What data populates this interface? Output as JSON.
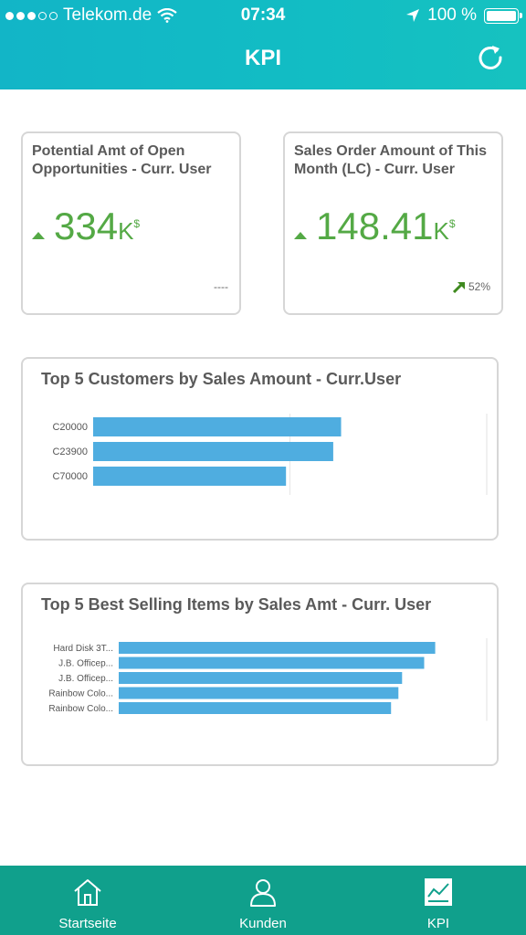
{
  "status_bar": {
    "carrier": "Telekom.de",
    "time": "07:34",
    "battery": "100 %"
  },
  "nav": {
    "title": "KPI"
  },
  "kpi_tiles": [
    {
      "title": "Potential Amt of Open Opportunities - Curr. User",
      "value": "334",
      "unit": "K",
      "currency": "$",
      "footer": "----"
    },
    {
      "title": "Sales Order Amount of This Month (LC) - Curr. User",
      "value": "148.41",
      "unit": "K",
      "currency": "$",
      "footer": "52%"
    }
  ],
  "chart_data": [
    {
      "type": "bar",
      "title": "Top 5 Customers by Sales Amount - Curr.User",
      "categories": [
        "C20000",
        "C23900",
        "C70000"
      ],
      "values": [
        63,
        61,
        49
      ],
      "xlim": [
        0,
        100
      ],
      "orientation": "horizontal",
      "color": "#4fade0"
    },
    {
      "type": "bar",
      "title": "Top 5 Best Selling Items by Sales Amt - Curr. User",
      "categories": [
        "Hard Disk 3T...",
        "J.B. Officep...",
        "J.B. Officep...",
        "Rainbow Colo...",
        "Rainbow Colo..."
      ],
      "values": [
        86,
        83,
        77,
        76,
        74
      ],
      "xlim": [
        0,
        100
      ],
      "orientation": "horizontal",
      "color": "#4fade0"
    }
  ],
  "tabbar": {
    "tabs": [
      {
        "label": "Startseite",
        "icon": "home-icon"
      },
      {
        "label": "Kunden",
        "icon": "user-icon"
      },
      {
        "label": "KPI",
        "icon": "chart-icon"
      }
    ]
  }
}
